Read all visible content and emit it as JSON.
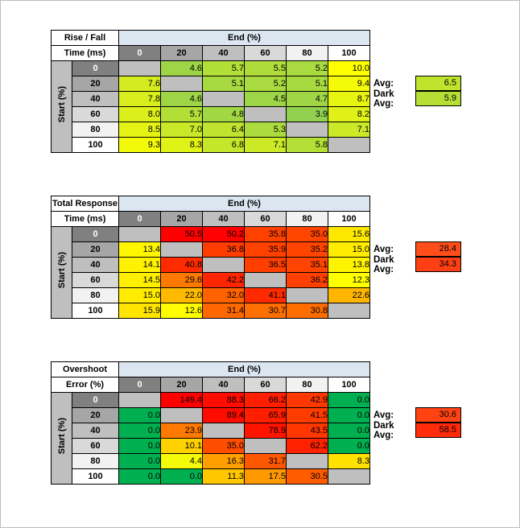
{
  "frame": {
    "border_color": "#bdbdbd",
    "bg": "#ffffff"
  },
  "shared": {
    "end_axis_label": "End (%)",
    "start_axis_label": "Start (%)",
    "col_headers": [
      "0",
      "20",
      "40",
      "60",
      "80",
      "100"
    ],
    "row_headers": [
      "0",
      "20",
      "40",
      "60",
      "80",
      "100"
    ],
    "header_bg": [
      "#808080",
      "#A6A6A6",
      "#BFBFBF",
      "#D9D9D9",
      "#F2F2F2",
      "#FFFFFF"
    ],
    "header_fg": [
      "#FFFFFF",
      "#000000",
      "#000000",
      "#000000",
      "#000000",
      "#000000"
    ],
    "diagonal_bg": "#BFBFBF",
    "end_header_bg": "#DCE6F1",
    "avg_label": "Avg:",
    "dark_avg_label": "Dark Avg:"
  },
  "tables": [
    {
      "title_line1": "Rise / Fall",
      "title_line2": "Time (ms)",
      "avg_color": "#C0E42E",
      "dark_avg_color": "#B6DF36",
      "cell_colors": [
        [
          null,
          "#9ED547",
          "#B2DE38",
          "#AFDC3B",
          "#A9DA3F",
          "#FFFF00"
        ],
        [
          "#D4EC1F",
          null,
          "#A7D940",
          "#A9DA3F",
          "#A7D940",
          "#F4FA08"
        ],
        [
          "#D8EE1D",
          "#9ED547",
          null,
          "#9DD548",
          "#A0D646",
          "#E8F511"
        ],
        [
          "#DBF01A",
          "#B2DE38",
          "#A2D744",
          null,
          "#92D050",
          "#DFF118"
        ],
        [
          "#E4F314",
          "#C9E827",
          "#BFE32F",
          "#ABDB3E",
          null,
          "#CBE926"
        ],
        [
          "#F2FA09",
          "#E1F216",
          "#C6E62A",
          "#CBE926",
          "#B4DF37",
          null
        ]
      ]
    },
    {
      "title_line1": "Total Response",
      "title_line2": "Time (ms)",
      "avg_color": "#FF4E1A",
      "dark_avg_color": "#FF4014",
      "cell_colors": [
        [
          null,
          "#FF0000",
          "#FF0100",
          "#FF4100",
          "#FF4500",
          "#FFE800"
        ],
        [
          "#FFF700",
          null,
          "#FF3D00",
          "#FF4100",
          "#FF4400",
          "#FFEC00"
        ],
        [
          "#FFF200",
          "#FF2B00",
          null,
          "#FF3E00",
          "#FF4400",
          "#FFF400"
        ],
        [
          "#FFEF00",
          "#FF7900",
          "#FF2500",
          null,
          "#FF4000",
          "#FFFF00"
        ],
        [
          "#FFEC00",
          "#FFBA00",
          "#FF6200",
          "#FF2A00",
          null,
          "#FFB600"
        ],
        [
          "#FFE500",
          "#FFFD00",
          "#FF6800",
          "#FF6E00",
          "#FF6D00",
          null
        ]
      ]
    },
    {
      "title_line1": "Overshoot",
      "title_line2": "Error (%)",
      "avg_color": "#FF4312",
      "dark_avg_color": "#FF2B0B",
      "cell_colors": [
        [
          null,
          "#FF0000",
          "#FF0D00",
          "#FF1E00",
          "#FF3800",
          "#00B050"
        ],
        [
          "#00B050",
          null,
          "#FF0C00",
          "#FF1E00",
          "#FF3B00",
          "#00B050"
        ],
        [
          "#00B050",
          "#FF7900",
          null,
          "#FF1400",
          "#FF3600",
          "#00B050"
        ],
        [
          "#00B050",
          "#FFD100",
          "#FF4D00",
          null,
          "#FF2200",
          "#00B050"
        ],
        [
          "#00B050",
          "#F4FA0A",
          "#FF9F00",
          "#FF5600",
          null,
          "#FFE100"
        ],
        [
          "#00B050",
          "#00B050",
          "#FFC700",
          "#FF9900",
          "#FF5C00",
          null
        ]
      ]
    }
  ],
  "chart_data": [
    {
      "type": "heatmap",
      "title": "Rise / Fall Time (ms)",
      "x_label": "End (%)",
      "y_label": "Start (%)",
      "x": [
        0,
        20,
        40,
        60,
        80,
        100
      ],
      "y": [
        0,
        20,
        40,
        60,
        80,
        100
      ],
      "values": [
        [
          null,
          4.6,
          5.7,
          5.5,
          5.2,
          10.0
        ],
        [
          7.6,
          null,
          5.1,
          5.2,
          5.1,
          9.4
        ],
        [
          7.8,
          4.6,
          null,
          4.5,
          4.7,
          8.7
        ],
        [
          8.0,
          5.7,
          4.8,
          null,
          3.9,
          8.2
        ],
        [
          8.5,
          7.0,
          6.4,
          5.3,
          null,
          7.1
        ],
        [
          9.3,
          8.3,
          6.8,
          7.1,
          5.8,
          null
        ]
      ],
      "avg": 6.5,
      "dark_avg": 5.9,
      "color_scale": "green (low) to yellow (high), diagonal cells gray/blank"
    },
    {
      "type": "heatmap",
      "title": "Total Response Time (ms)",
      "x_label": "End (%)",
      "y_label": "Start (%)",
      "x": [
        0,
        20,
        40,
        60,
        80,
        100
      ],
      "y": [
        0,
        20,
        40,
        60,
        80,
        100
      ],
      "values": [
        [
          null,
          50.5,
          50.2,
          35.8,
          35.0,
          15.6
        ],
        [
          13.4,
          null,
          36.8,
          35.9,
          35.2,
          15.0
        ],
        [
          14.1,
          40.8,
          null,
          36.5,
          35.1,
          13.8
        ],
        [
          14.5,
          29.6,
          42.2,
          null,
          36.2,
          12.3
        ],
        [
          15.0,
          22.0,
          32.0,
          41.1,
          null,
          22.6
        ],
        [
          15.9,
          12.6,
          31.4,
          30.7,
          30.8,
          null
        ]
      ],
      "avg": 28.4,
      "dark_avg": 34.3,
      "color_scale": "yellow (low) to red (high), diagonal cells gray/blank"
    },
    {
      "type": "heatmap",
      "title": "Overshoot Error (%)",
      "x_label": "End (%)",
      "y_label": "Start (%)",
      "x": [
        0,
        20,
        40,
        60,
        80,
        100
      ],
      "y": [
        0,
        20,
        40,
        60,
        80,
        100
      ],
      "values": [
        [
          null,
          149.4,
          88.3,
          66.2,
          42.9,
          0.0
        ],
        [
          0.0,
          null,
          89.4,
          65.9,
          41.5,
          0.0
        ],
        [
          0.0,
          23.9,
          null,
          78.9,
          43.5,
          0.0
        ],
        [
          0.0,
          10.1,
          35.0,
          null,
          62.2,
          0.0
        ],
        [
          0.0,
          4.4,
          16.3,
          31.7,
          null,
          8.3
        ],
        [
          0.0,
          0.0,
          11.3,
          17.5,
          30.5,
          null
        ]
      ],
      "avg": 30.6,
      "dark_avg": 58.5,
      "color_scale": "green (zero) through yellow/orange to red (high), diagonal cells gray/blank"
    }
  ]
}
